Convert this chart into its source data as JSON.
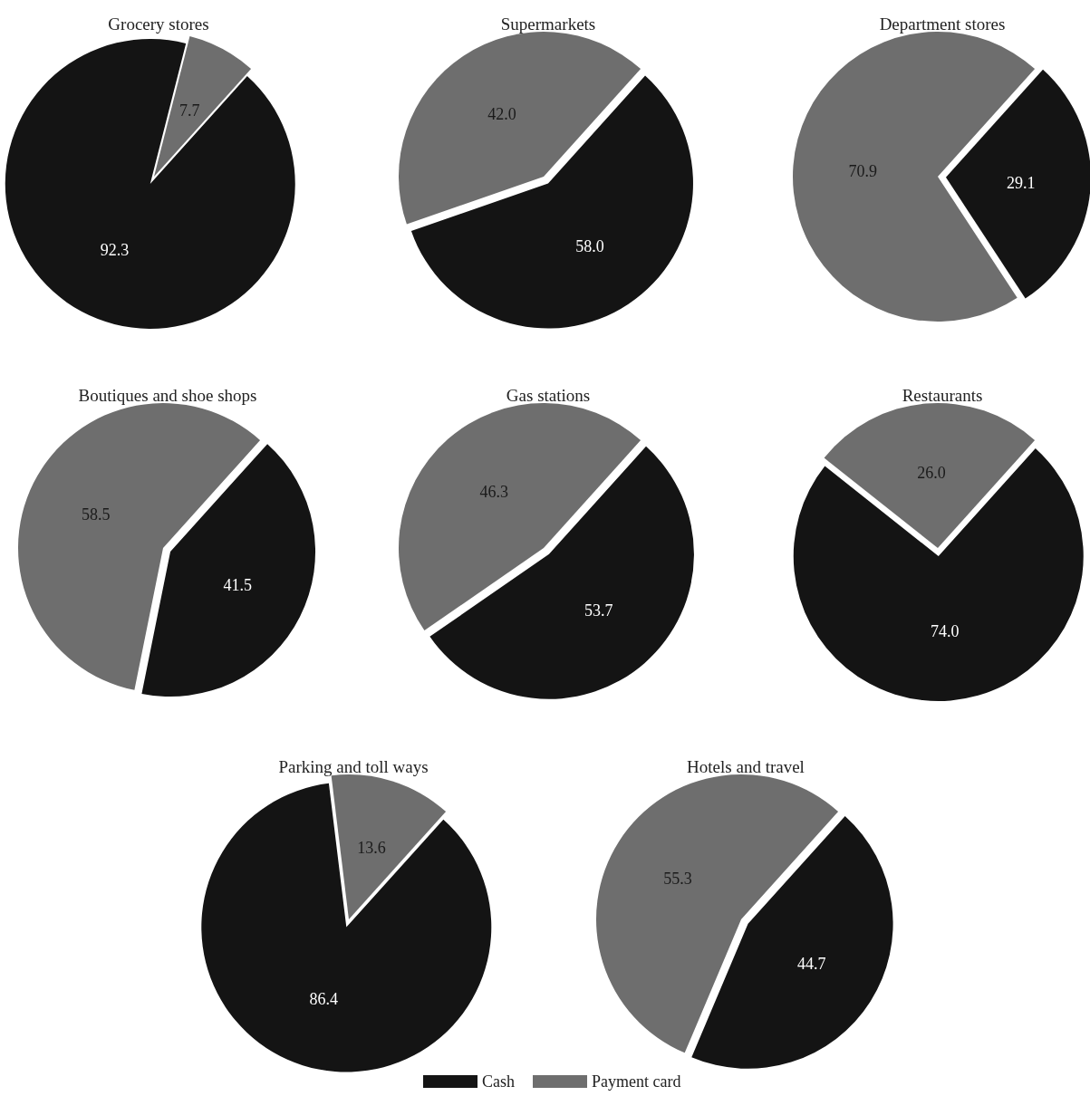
{
  "chart_data": [
    {
      "type": "pie",
      "title": "Grocery stores",
      "categories": [
        null,
        null
      ],
      "values": [
        92.3,
        7.7
      ],
      "value_labels": [
        "92.3",
        "7.7"
      ],
      "colors": [
        "#141414",
        "#6e6e6e"
      ]
    },
    {
      "type": "pie",
      "title": "Supermarkets",
      "categories": [
        null,
        null
      ],
      "values": [
        58.0,
        42.0
      ],
      "value_labels": [
        "58.0",
        "42.0"
      ],
      "colors": [
        "#141414",
        "#6e6e6e"
      ]
    },
    {
      "type": "pie",
      "title": "Department stores",
      "categories": [
        null,
        null
      ],
      "values": [
        29.1,
        70.9
      ],
      "value_labels": [
        "29.1",
        "70.9"
      ],
      "colors": [
        "#141414",
        "#6e6e6e"
      ]
    },
    {
      "type": "pie",
      "title": "Boutiques and shoe shops",
      "categories": [
        null,
        null
      ],
      "values": [
        41.5,
        58.5
      ],
      "value_labels": [
        "41.5",
        "58.5"
      ],
      "colors": [
        "#141414",
        "#6e6e6e"
      ]
    },
    {
      "type": "pie",
      "title": "Gas stations",
      "categories": [
        null,
        null
      ],
      "values": [
        53.7,
        46.3
      ],
      "value_labels": [
        "53.7",
        "46.3"
      ],
      "colors": [
        "#141414",
        "#6e6e6e"
      ]
    },
    {
      "type": "pie",
      "title": "Restaurants",
      "categories": [
        null,
        null
      ],
      "values": [
        74.0,
        26.0
      ],
      "value_labels": [
        "74.0",
        "26.0"
      ],
      "colors": [
        "#141414",
        "#6e6e6e"
      ]
    },
    {
      "type": "pie",
      "title": "Parking and toll ways",
      "categories": [
        null,
        null
      ],
      "values": [
        86.4,
        13.6
      ],
      "value_labels": [
        "86.4",
        "13.6"
      ],
      "colors": [
        "#141414",
        "#6e6e6e"
      ]
    },
    {
      "type": "pie",
      "title": "Hotels and travel",
      "categories": [
        "Cash",
        "Payment card"
      ],
      "values": [
        44.7,
        55.3
      ],
      "value_labels": [
        "44.7",
        "55.3"
      ],
      "colors": [
        "#141414",
        "#6e6e6e"
      ],
      "legend": "bottom"
    }
  ]
}
